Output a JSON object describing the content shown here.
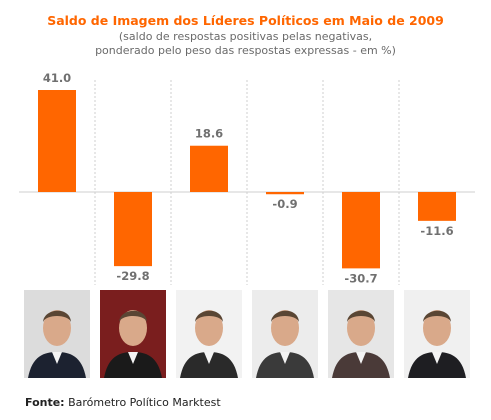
{
  "colors": {
    "bar": "#ff6600",
    "title": "#ff6600",
    "label": "#707070",
    "grid": "#cfcfcf"
  },
  "chart_data": {
    "type": "bar",
    "title": "Saldo de Imagem dos Líderes Políticos em Maio de 2009",
    "subtitle_lines": [
      "(saldo de respostas positivas pelas negativas,",
      "ponderado pelo peso das respostas expressas - em %)"
    ],
    "categories": [
      "",
      "",
      "",
      "",
      "",
      ""
    ],
    "values": [
      41.0,
      -29.8,
      18.6,
      -0.9,
      -30.7,
      -11.6
    ],
    "value_labels": [
      "41.0",
      "-29.8",
      "18.6",
      "-0.9",
      "-30.7",
      "-11.6"
    ],
    "ylim": [
      -37,
      47
    ],
    "grid": "vertical-dashed",
    "legend": "none"
  },
  "photos": [
    {
      "name": "leader-1-photo"
    },
    {
      "name": "leader-2-photo"
    },
    {
      "name": "leader-3-photo"
    },
    {
      "name": "leader-4-photo"
    },
    {
      "name": "leader-5-photo"
    },
    {
      "name": "leader-6-photo"
    }
  ],
  "source": {
    "label": "Fonte:",
    "text": "Barómetro Político Marktest"
  }
}
